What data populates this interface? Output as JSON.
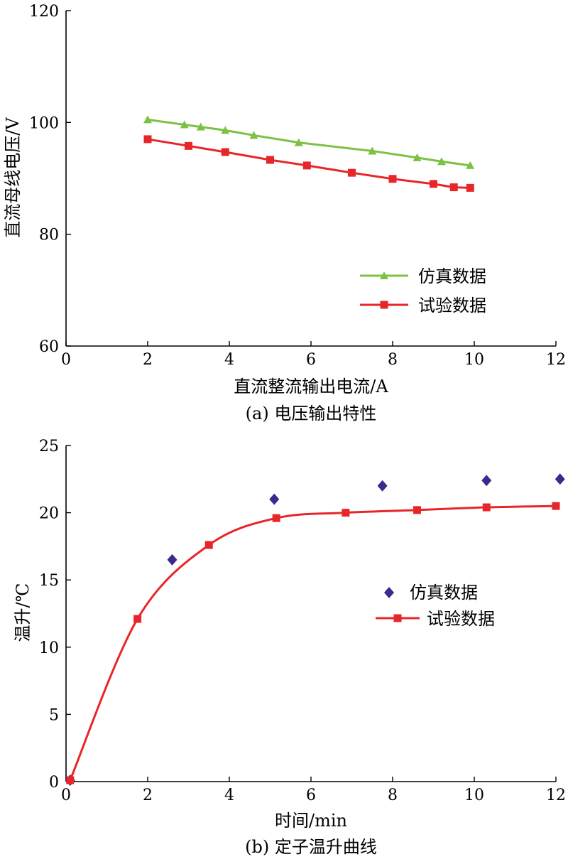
{
  "chart_data": [
    {
      "type": "line",
      "caption": "(a) 电压输出特性",
      "xlabel": "直流整流输出电流/A",
      "ylabel": "直流母线电压/V",
      "xlim": [
        0,
        12
      ],
      "ylim": [
        60,
        120
      ],
      "xticks": [
        "0",
        "2",
        "4",
        "6",
        "8",
        "10",
        "12"
      ],
      "yticks": [
        "60",
        "80",
        "100",
        "120"
      ],
      "grid": false,
      "legend_position": "lower-right",
      "series": [
        {
          "name": "仿真数据",
          "color": "#7cc242",
          "marker": "triangle",
          "line": true,
          "x": [
            2.0,
            2.9,
            3.3,
            3.9,
            4.6,
            5.7,
            7.5,
            8.6,
            9.2,
            9.9
          ],
          "y": [
            100.5,
            99.6,
            99.2,
            98.6,
            97.7,
            96.4,
            94.9,
            93.7,
            93.0,
            92.3
          ]
        },
        {
          "name": "试验数据",
          "color": "#e8262a",
          "marker": "square",
          "line": true,
          "x": [
            2.0,
            3.0,
            3.9,
            5.0,
            5.9,
            7.0,
            8.0,
            9.0,
            9.5,
            9.9
          ],
          "y": [
            97.0,
            95.8,
            94.7,
            93.3,
            92.3,
            91.0,
            89.9,
            89.0,
            88.4,
            88.3
          ]
        }
      ]
    },
    {
      "type": "line",
      "caption": "(b) 定子温升曲线",
      "xlabel": "时间/min",
      "ylabel": "温升/℃",
      "xlim": [
        0,
        12
      ],
      "ylim": [
        0,
        25
      ],
      "xticks": [
        "0",
        "2",
        "4",
        "6",
        "8",
        "10",
        "12"
      ],
      "yticks": [
        "0",
        "5",
        "10",
        "15",
        "20",
        "25"
      ],
      "grid": false,
      "legend_position": "center-right",
      "series": [
        {
          "name": "仿真数据",
          "color": "#3b2a8c",
          "marker": "diamond",
          "line": false,
          "x": [
            0.1,
            2.6,
            5.1,
            7.75,
            10.3,
            12.1
          ],
          "y": [
            0.1,
            16.5,
            21.0,
            22.0,
            22.4,
            22.5
          ]
        },
        {
          "name": "试验数据",
          "color": "#e8262a",
          "marker": "square",
          "line": true,
          "x": [
            0.1,
            1.75,
            3.5,
            5.15,
            6.85,
            8.6,
            10.3,
            12.0
          ],
          "y": [
            0.1,
            12.1,
            17.6,
            19.6,
            20.0,
            20.2,
            20.4,
            20.5
          ]
        }
      ]
    }
  ]
}
